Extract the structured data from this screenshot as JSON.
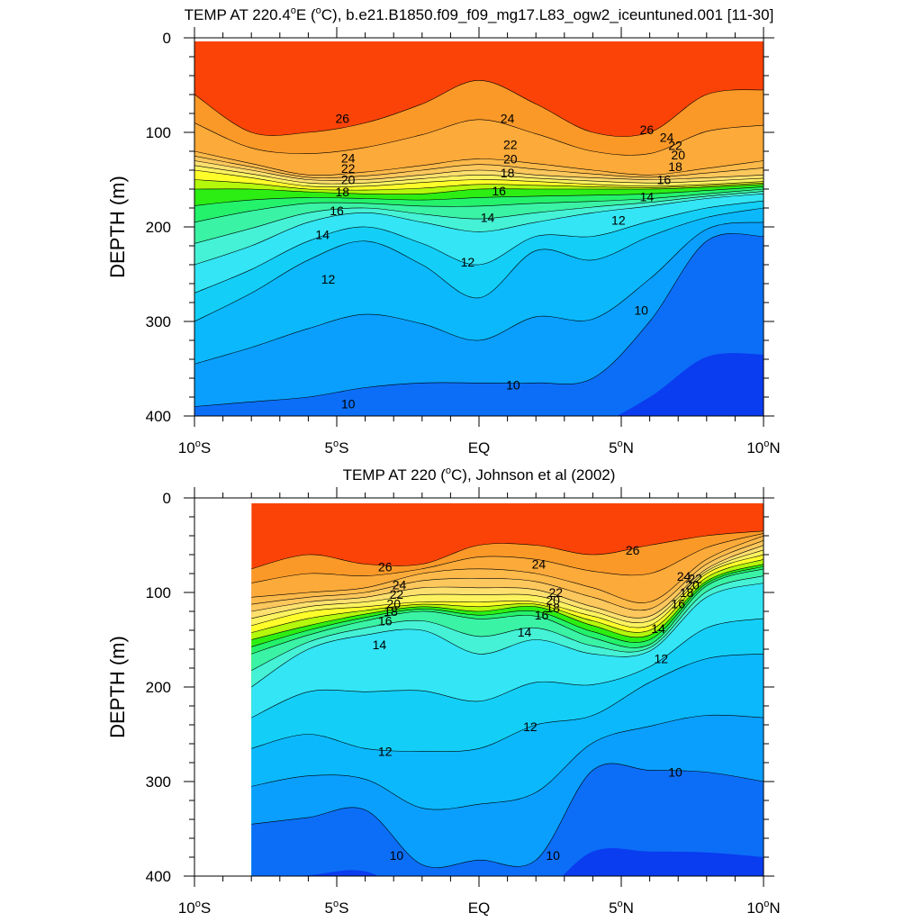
{
  "chart_data": [
    {
      "type": "contour",
      "title": "TEMP AT 220.4°E (°C), b.e21.B1850.f09_f09_mg17.L83_ogw2_iceuntuned.001 [11-30]",
      "title_parts": {
        "pre": "TEMP AT 220.4",
        "deg1": "o",
        "mid": "E (",
        "deg2": "o",
        "post": "C), b.e21.B1850.f09_f09_mg17.L83_ogw2_iceuntuned.001 [11-30]"
      },
      "xlabel": "",
      "ylabel": "DEPTH (m)",
      "xlim": [
        -10,
        10
      ],
      "ylim": [
        400,
        0
      ],
      "x_ticks": [
        {
          "value": -10,
          "num": "10",
          "deg": "o",
          "dir": "S"
        },
        {
          "value": -5,
          "num": "5",
          "deg": "o",
          "dir": "S"
        },
        {
          "value": 0,
          "num": "EQ",
          "deg": "",
          "dir": ""
        },
        {
          "value": 5,
          "num": "5",
          "deg": "o",
          "dir": "N"
        },
        {
          "value": 10,
          "num": "10",
          "deg": "o",
          "dir": "N"
        }
      ],
      "y_ticks": [
        0,
        100,
        200,
        300,
        400
      ],
      "data_xlim": [
        -10,
        10
      ],
      "x": [
        -10,
        -8,
        -6,
        -4,
        -2,
        0,
        2,
        4,
        6,
        8,
        10
      ],
      "isotherm_depths": {
        "26": [
          60,
          100,
          100,
          90,
          70,
          45,
          70,
          100,
          100,
          60,
          55
        ],
        "24": [
          120,
          133,
          145,
          142,
          135,
          128,
          133,
          140,
          145,
          138,
          130
        ],
        "22": [
          130,
          140,
          150,
          150,
          145,
          140,
          145,
          148,
          150,
          148,
          145
        ],
        "20": [
          140,
          148,
          157,
          157,
          153,
          150,
          152,
          155,
          157,
          155,
          152
        ],
        "18": [
          160,
          160,
          163,
          165,
          165,
          160,
          160,
          160,
          160,
          158,
          155
        ],
        "16": [
          195,
          183,
          175,
          175,
          178,
          178,
          175,
          173,
          170,
          165,
          160
        ],
        "14": [
          240,
          220,
          195,
          185,
          195,
          205,
          195,
          185,
          178,
          170,
          165
        ],
        "12": [
          300,
          270,
          235,
          215,
          240,
          275,
          225,
          235,
          210,
          190,
          180
        ],
        "10": [
          390,
          385,
          380,
          370,
          365,
          365,
          365,
          360,
          300,
          215,
          210
        ]
      },
      "contour_labels": [
        {
          "text": "26",
          "x": -4.8,
          "y": 85
        },
        {
          "text": "24",
          "x": -4.6,
          "y": 127
        },
        {
          "text": "22",
          "x": -4.6,
          "y": 138
        },
        {
          "text": "20",
          "x": -4.6,
          "y": 150
        },
        {
          "text": "18",
          "x": -4.8,
          "y": 163
        },
        {
          "text": "16",
          "x": -5.0,
          "y": 183
        },
        {
          "text": "14",
          "x": -5.5,
          "y": 208
        },
        {
          "text": "12",
          "x": -5.3,
          "y": 255
        },
        {
          "text": "10",
          "x": -4.6,
          "y": 387
        },
        {
          "text": "24",
          "x": 1.0,
          "y": 85
        },
        {
          "text": "22",
          "x": 1.1,
          "y": 113
        },
        {
          "text": "20",
          "x": 1.1,
          "y": 128
        },
        {
          "text": "18",
          "x": 1.0,
          "y": 143
        },
        {
          "text": "16",
          "x": 0.7,
          "y": 162
        },
        {
          "text": "14",
          "x": 0.3,
          "y": 190
        },
        {
          "text": "12",
          "x": -0.4,
          "y": 237
        },
        {
          "text": "10",
          "x": 1.2,
          "y": 367
        },
        {
          "text": "26",
          "x": 5.9,
          "y": 97
        },
        {
          "text": "24",
          "x": 6.6,
          "y": 105
        },
        {
          "text": "22",
          "x": 6.9,
          "y": 114
        },
        {
          "text": "20",
          "x": 7.0,
          "y": 124
        },
        {
          "text": "18",
          "x": 6.9,
          "y": 136
        },
        {
          "text": "16",
          "x": 6.5,
          "y": 150
        },
        {
          "text": "14",
          "x": 5.9,
          "y": 168
        },
        {
          "text": "12",
          "x": 4.9,
          "y": 193
        },
        {
          "text": "10",
          "x": 5.7,
          "y": 288
        }
      ]
    },
    {
      "type": "contour",
      "title": "TEMP AT 220 (°C), Johnson et al (2002)",
      "title_parts": {
        "pre": "TEMP AT 220 (",
        "deg1": "o",
        "mid": "C), Johnson et al (2002)",
        "deg2": "",
        "post": ""
      },
      "xlabel": "",
      "ylabel": "DEPTH (m)",
      "xlim": [
        -10,
        10
      ],
      "ylim": [
        400,
        0
      ],
      "x_ticks": [
        {
          "value": -10,
          "num": "10",
          "deg": "o",
          "dir": "S"
        },
        {
          "value": -5,
          "num": "5",
          "deg": "o",
          "dir": "S"
        },
        {
          "value": 0,
          "num": "EQ",
          "deg": "",
          "dir": ""
        },
        {
          "value": 5,
          "num": "5",
          "deg": "o",
          "dir": "N"
        },
        {
          "value": 10,
          "num": "10",
          "deg": "o",
          "dir": "N"
        }
      ],
      "y_ticks": [
        0,
        100,
        200,
        300,
        400
      ],
      "data_xlim": [
        -8,
        10
      ],
      "x": [
        -8,
        -6,
        -4,
        -2,
        0,
        2,
        4,
        6,
        8,
        10
      ],
      "isotherm_depths": {
        "26": [
          75,
          60,
          70,
          70,
          50,
          50,
          60,
          50,
          40,
          35
        ],
        "24": [
          105,
          100,
          95,
          80,
          75,
          80,
          95,
          110,
          65,
          40
        ],
        "22": [
          120,
          110,
          105,
          95,
          95,
          97,
          115,
          125,
          75,
          50
        ],
        "20": [
          135,
          120,
          115,
          110,
          110,
          110,
          125,
          135,
          80,
          60
        ],
        "18": [
          150,
          135,
          123,
          115,
          120,
          115,
          135,
          145,
          88,
          70
        ],
        "16": [
          165,
          145,
          130,
          120,
          128,
          125,
          148,
          155,
          93,
          75
        ],
        "14": [
          200,
          160,
          145,
          140,
          165,
          150,
          165,
          162,
          105,
          90
        ],
        "12": [
          265,
          250,
          265,
          268,
          265,
          240,
          230,
          195,
          170,
          165
        ],
        "10": [
          345,
          338,
          330,
          388,
          383,
          383,
          288,
          288,
          290,
          300
        ]
      },
      "contour_labels": [
        {
          "text": "26",
          "x": -3.3,
          "y": 73
        },
        {
          "text": "24",
          "x": -2.8,
          "y": 92
        },
        {
          "text": "22",
          "x": -2.9,
          "y": 102
        },
        {
          "text": "20",
          "x": -3.0,
          "y": 112
        },
        {
          "text": "18",
          "x": -3.1,
          "y": 120
        },
        {
          "text": "16",
          "x": -3.3,
          "y": 130
        },
        {
          "text": "14",
          "x": -3.5,
          "y": 155
        },
        {
          "text": "12",
          "x": -3.3,
          "y": 268
        },
        {
          "text": "10",
          "x": -2.9,
          "y": 378
        },
        {
          "text": "24",
          "x": 2.1,
          "y": 70
        },
        {
          "text": "22",
          "x": 2.7,
          "y": 100
        },
        {
          "text": "20",
          "x": 2.6,
          "y": 108
        },
        {
          "text": "18",
          "x": 2.6,
          "y": 116
        },
        {
          "text": "16",
          "x": 2.2,
          "y": 124
        },
        {
          "text": "14",
          "x": 1.6,
          "y": 142
        },
        {
          "text": "12",
          "x": 1.8,
          "y": 242
        },
        {
          "text": "10",
          "x": 2.6,
          "y": 378
        },
        {
          "text": "26",
          "x": 5.4,
          "y": 55
        },
        {
          "text": "24",
          "x": 7.2,
          "y": 83
        },
        {
          "text": "22",
          "x": 7.6,
          "y": 85
        },
        {
          "text": "20",
          "x": 7.5,
          "y": 92
        },
        {
          "text": "18",
          "x": 7.3,
          "y": 100
        },
        {
          "text": "16",
          "x": 7.0,
          "y": 112
        },
        {
          "text": "14",
          "x": 6.3,
          "y": 138
        },
        {
          "text": "12",
          "x": 6.4,
          "y": 170
        },
        {
          "text": "10",
          "x": 6.9,
          "y": 290
        }
      ]
    }
  ],
  "colors": {
    "fill_levels": [
      {
        "above": 28,
        "color": "#ff0000"
      },
      {
        "above": 27,
        "color": "#fb4307"
      },
      {
        "above": 26,
        "color": "#f77f0f"
      },
      {
        "above": 25,
        "color": "#fb9928"
      },
      {
        "above": 24,
        "color": "#fcaa3a"
      },
      {
        "above": 23,
        "color": "#fdb94a"
      },
      {
        "above": 22,
        "color": "#fcc75c"
      },
      {
        "above": 21,
        "color": "#fde06e"
      },
      {
        "above": 20,
        "color": "#fdf35f"
      },
      {
        "above": 19,
        "color": "#fffe2a"
      },
      {
        "above": 18,
        "color": "#b4f80c"
      },
      {
        "above": 17,
        "color": "#2cee13"
      },
      {
        "above": 16,
        "color": "#24f26b"
      },
      {
        "above": 15,
        "color": "#3af3a5"
      },
      {
        "above": 14,
        "color": "#45f2d6"
      },
      {
        "above": 13,
        "color": "#33e5f5"
      },
      {
        "above": 12,
        "color": "#13cff8"
      },
      {
        "above": 11,
        "color": "#0bb8fb"
      },
      {
        "above": 10,
        "color": "#0a9ffd"
      },
      {
        "above": 9,
        "color": "#0c6ef6"
      },
      {
        "above": -99,
        "color": "#0a3cf0"
      }
    ],
    "contour_line": "#000000",
    "axis": "#000000"
  }
}
